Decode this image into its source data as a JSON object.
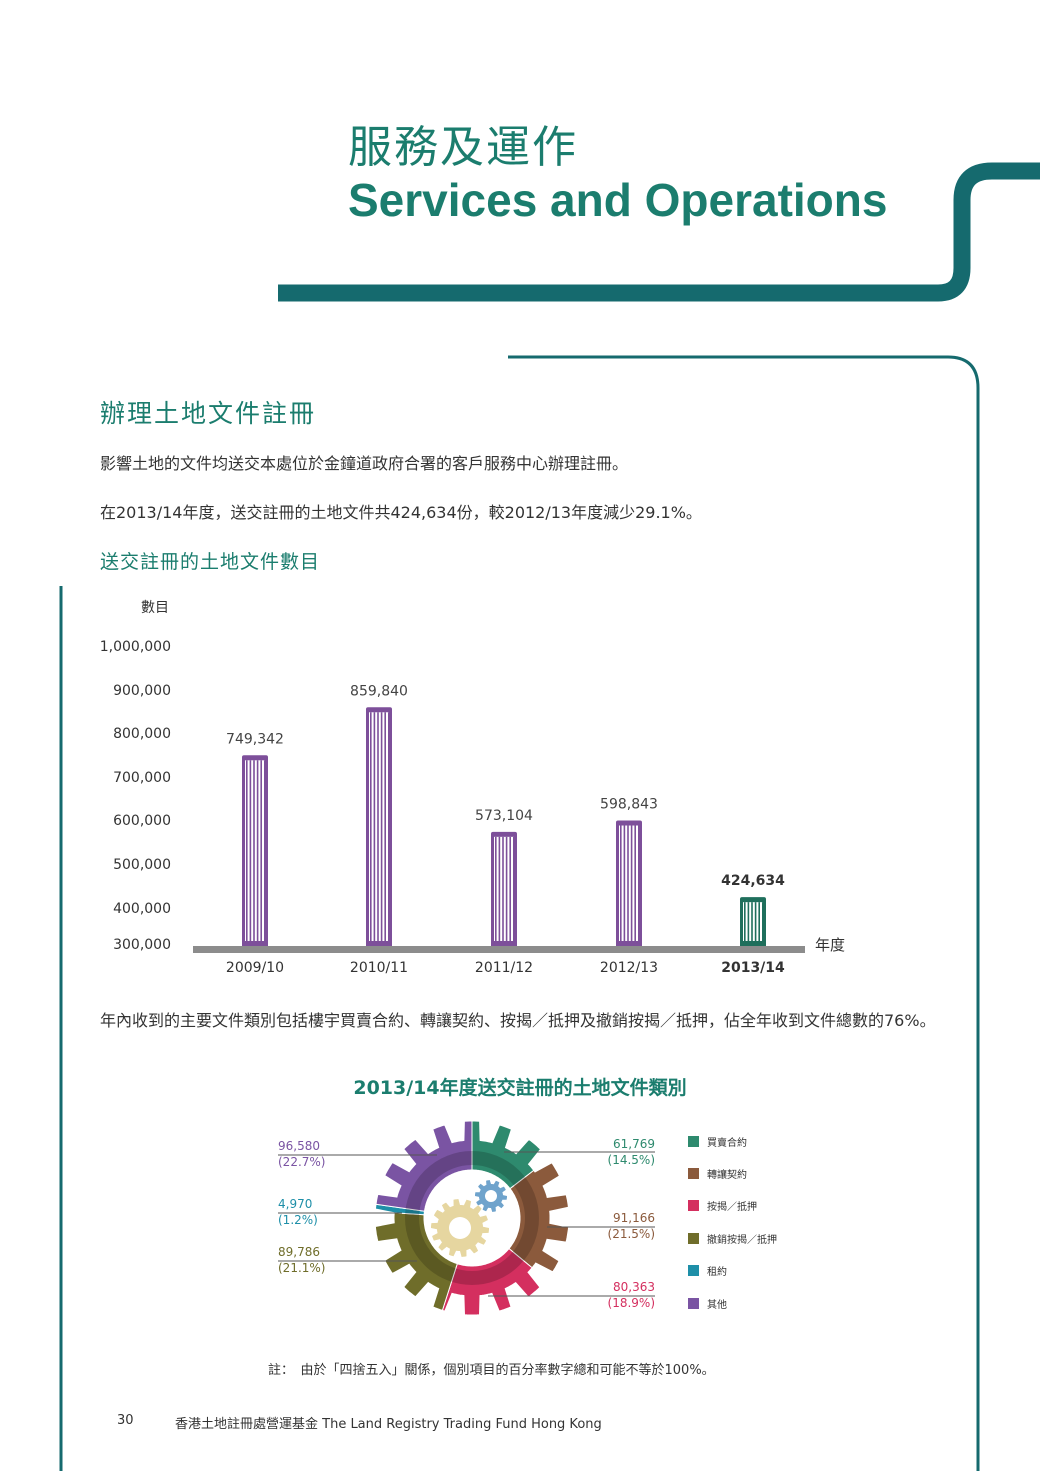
{
  "page": {
    "title_zh": "服務及運作",
    "title_en": "Services and Operations",
    "section_heading": "辦理土地文件註冊",
    "paragraph_1": "影響土地的文件均送交本處位於金鐘道政府合署的客戶服務中心辦理註冊。",
    "paragraph_2": "在2013/14年度，送交註冊的土地文件共424,634份，較2012/13年度減少29.1%。",
    "paragraph_3": "年內收到的主要文件類別包括樓宇買賣合約、轉讓契約、按揭／抵押及撤銷按揭／抵押，佔全年收到文件總數的76%。",
    "footnote": "註：　由於「四捨五入」關係，個別項目的百分率數字總和可能不等於100%。",
    "page_number": "30",
    "footer_text": "香港土地註冊處營運基金 The Land Registry Trading Fund Hong Kong"
  },
  "colors": {
    "brand_teal": "#1b7d6e",
    "band_teal": "#156a6e",
    "bar_purple": "#7d4f9a",
    "bar_current": "#1f6f5c",
    "axis_gray": "#8c8c8c"
  },
  "chart_data": [
    {
      "type": "bar",
      "title": "送交註冊的土地文件數目",
      "ylabel": "數目",
      "xlabel": "年度",
      "categories": [
        "2009/10",
        "2010/11",
        "2011/12",
        "2012/13",
        "2013/14"
      ],
      "values": [
        749342,
        859840,
        573104,
        598843,
        424634
      ],
      "value_labels": [
        "749,342",
        "859,840",
        "573,104",
        "598,843",
        "424,634"
      ],
      "highlight_index": 4,
      "ylim": [
        300000,
        1000000
      ],
      "yticks": [
        300000,
        400000,
        500000,
        600000,
        700000,
        800000,
        900000,
        1000000
      ],
      "ytick_labels": [
        "300,000",
        "400,000",
        "500,000",
        "600,000",
        "700,000",
        "800,000",
        "900,000",
        "1,000,000"
      ],
      "grid": false
    },
    {
      "type": "pie",
      "title": "2013/14年度送交註冊的土地文件類別",
      "legend_position": "right",
      "slices": [
        {
          "name": "買賣合約",
          "value": 61769,
          "value_label": "61,769",
          "percent_label": "(14.5%)",
          "color": "#2e8a6e"
        },
        {
          "name": "轉讓契約",
          "value": 91166,
          "value_label": "91,166",
          "percent_label": "(21.5%)",
          "color": "#8b5a3c"
        },
        {
          "name": "按揭／抵押",
          "value": 80363,
          "value_label": "80,363",
          "percent_label": "(18.9%)",
          "color": "#d42f5f"
        },
        {
          "name": "撤銷按揭／抵押",
          "value": 89786,
          "value_label": "89,786",
          "percent_label": "(21.1%)",
          "color": "#6f6d2a"
        },
        {
          "name": "租約",
          "value": 4970,
          "value_label": "4,970",
          "percent_label": "(1.2%)",
          "color": "#1e8fa8"
        },
        {
          "name": "其他",
          "value": 96580,
          "value_label": "96,580",
          "percent_label": "(22.7%)",
          "color": "#7a54a3"
        }
      ]
    }
  ]
}
